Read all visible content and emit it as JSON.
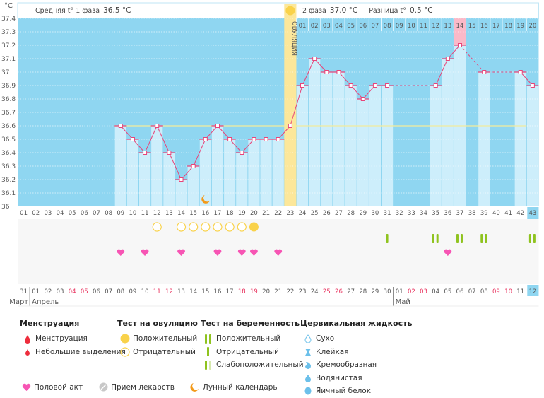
{
  "chart_data": {
    "type": "bar",
    "title": "",
    "ylabel": "°C",
    "ylim": [
      36.0,
      37.4
    ],
    "y_ticks": [
      "37.4",
      "37.3",
      "37.2",
      "37.1",
      "37",
      "36.9",
      "36.8",
      "36.7",
      "36.6",
      "36.5",
      "36.4",
      "36.3",
      "36.2",
      "36.1",
      "36"
    ],
    "y_tick_values": [
      37.4,
      37.3,
      37.2,
      37.1,
      37.0,
      36.9,
      36.8,
      36.7,
      36.6,
      36.5,
      36.4,
      36.3,
      36.2,
      36.1,
      36.0
    ],
    "cycle_days": [
      "01",
      "02",
      "03",
      "04",
      "05",
      "06",
      "07",
      "08",
      "09",
      "10",
      "11",
      "12",
      "13",
      "14",
      "15",
      "16",
      "17",
      "18",
      "19",
      "20",
      "21",
      "22",
      "23",
      "24",
      "25",
      "26",
      "27",
      "28",
      "29",
      "30",
      "31",
      "32",
      "33",
      "34",
      "35",
      "36",
      "37",
      "38",
      "39",
      "40",
      "41",
      "42",
      "43"
    ],
    "current_cycle_day": "43",
    "temperatures": [
      null,
      null,
      null,
      null,
      null,
      null,
      null,
      null,
      36.6,
      36.5,
      36.4,
      36.6,
      36.4,
      36.2,
      36.3,
      36.5,
      36.6,
      36.5,
      36.4,
      36.5,
      36.5,
      36.5,
      36.6,
      36.9,
      37.1,
      37.0,
      37.0,
      36.9,
      36.8,
      36.9,
      36.9,
      null,
      null,
      null,
      36.9,
      37.1,
      37.2,
      null,
      37.0,
      null,
      null,
      37.0,
      36.9
    ],
    "coverline": 36.6,
    "ovulation_day": 23,
    "ovulation_label": "ОВУЛЯЦИЯ",
    "phase2_days": [
      "01",
      "02",
      "03",
      "04",
      "05",
      "06",
      "07",
      "08",
      "09",
      "10",
      "11",
      "12",
      "13",
      "14",
      "15",
      "16",
      "17",
      "18",
      "19",
      "20"
    ],
    "phase2_highlight_day": "14",
    "phase1_summary": {
      "label": "Средняя t° 1 фаза",
      "value": "36.5 °C"
    },
    "phase2_summary": {
      "label": "2 фаза",
      "value": "37.0 °C"
    },
    "difference_summary": {
      "label": "Разница t°",
      "value": "0.5 °C"
    },
    "moon_day": 16,
    "ovulation_tests": {
      "negative_days": [
        12,
        14,
        15,
        16,
        17,
        18,
        19
      ],
      "positive_days": [
        20
      ]
    },
    "pregnancy_tests": {
      "positive_days": [
        35,
        37,
        39,
        43
      ],
      "negative_days": [
        31
      ]
    },
    "intercourse_days": [
      9,
      11,
      14,
      17,
      19,
      20,
      22,
      36
    ],
    "calendar_dates": [
      "31",
      "01",
      "02",
      "03",
      "04",
      "05",
      "06",
      "07",
      "08",
      "09",
      "10",
      "11",
      "12",
      "13",
      "14",
      "15",
      "16",
      "17",
      "18",
      "19",
      "20",
      "21",
      "22",
      "23",
      "24",
      "25",
      "26",
      "27",
      "28",
      "29",
      "30",
      "01",
      "02",
      "03",
      "04",
      "05",
      "06",
      "07",
      "08",
      "09",
      "10",
      "11",
      "12"
    ],
    "weekend_indices": [
      4,
      5,
      11,
      12,
      18,
      19,
      25,
      26,
      32,
      33,
      39,
      40
    ],
    "months": [
      {
        "label": "Март",
        "start_index": 0
      },
      {
        "label": "Апрель",
        "start_index": 1
      },
      {
        "label": "Май",
        "start_index": 31
      }
    ]
  },
  "legend": {
    "menstruation": {
      "title": "Менструация",
      "items": [
        "Менструация",
        "Небольшие выделения"
      ]
    },
    "ovulation_test": {
      "title": "Тест на овуляцию",
      "items": [
        "Положительный",
        "Отрицательный"
      ]
    },
    "pregnancy_test": {
      "title": "Тест на беременность",
      "items": [
        "Положительный",
        "Отрицательный",
        "Слабоположительный"
      ]
    },
    "cervical_fluid": {
      "title": "Цервикальная жидкость",
      "items": [
        "Сухо",
        "Клейкая",
        "Кремообразная",
        "Водянистая",
        "Яичный белок"
      ]
    },
    "other": [
      "Половой акт",
      "Прием лекарств",
      "Лунный календарь"
    ]
  },
  "colors": {
    "chart_bg": "#8fd6f1",
    "bar": "#cdeefb",
    "line": "#e8457a",
    "ovulation_band": "#fce79a",
    "coverline": "#f3ec9c",
    "highlight": "#fbb9c8",
    "positive_test": "#f9d24a",
    "pregnancy": "#8fc31f",
    "heart": "#f755b4",
    "moon": "#f39a1a",
    "weekend": "#e8305c"
  }
}
